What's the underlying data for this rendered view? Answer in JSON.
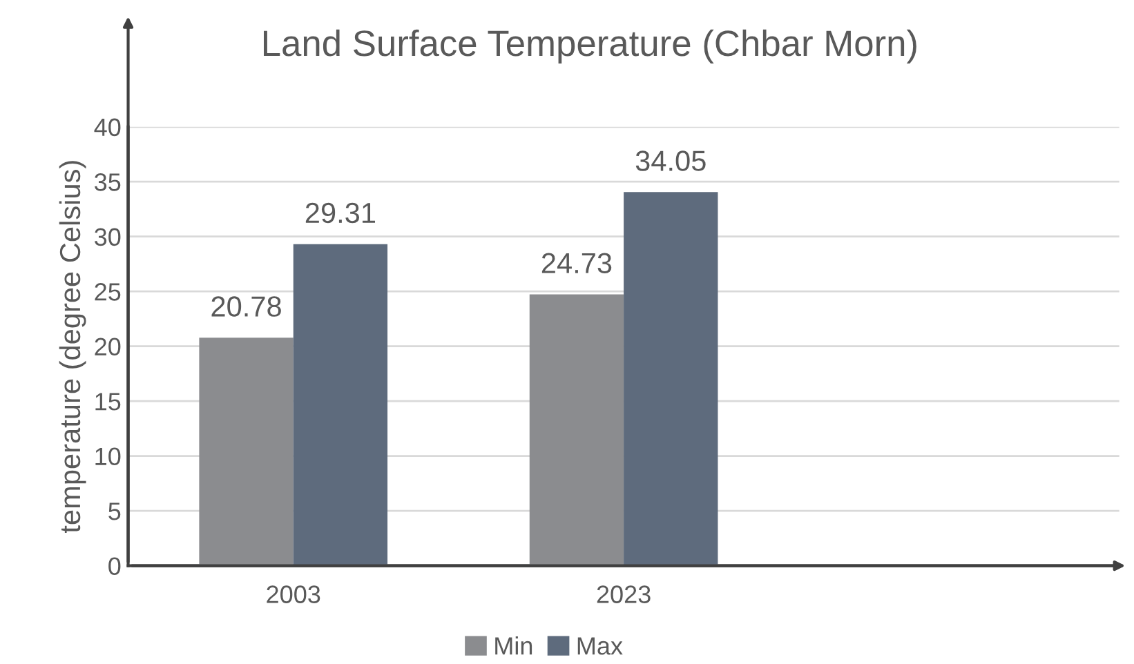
{
  "chart_data": {
    "type": "bar",
    "title": "Land Surface Temperature (Chbar Morn)",
    "ylabel": "temperature (degree Celsius)",
    "categories": [
      "2003",
      "2023",
      null
    ],
    "series": [
      {
        "name": "Min",
        "color": "#8b8c8f",
        "values": [
          20.78,
          24.73,
          null
        ]
      },
      {
        "name": "Max",
        "color": "#5e6b7d",
        "values": [
          29.31,
          34.05,
          null
        ]
      }
    ],
    "ylim": [
      0,
      40
    ],
    "yticks": [
      0,
      5,
      10,
      15,
      20,
      25,
      30,
      35,
      40
    ],
    "grid": "y",
    "legend": "bottom",
    "data_labels": true
  }
}
